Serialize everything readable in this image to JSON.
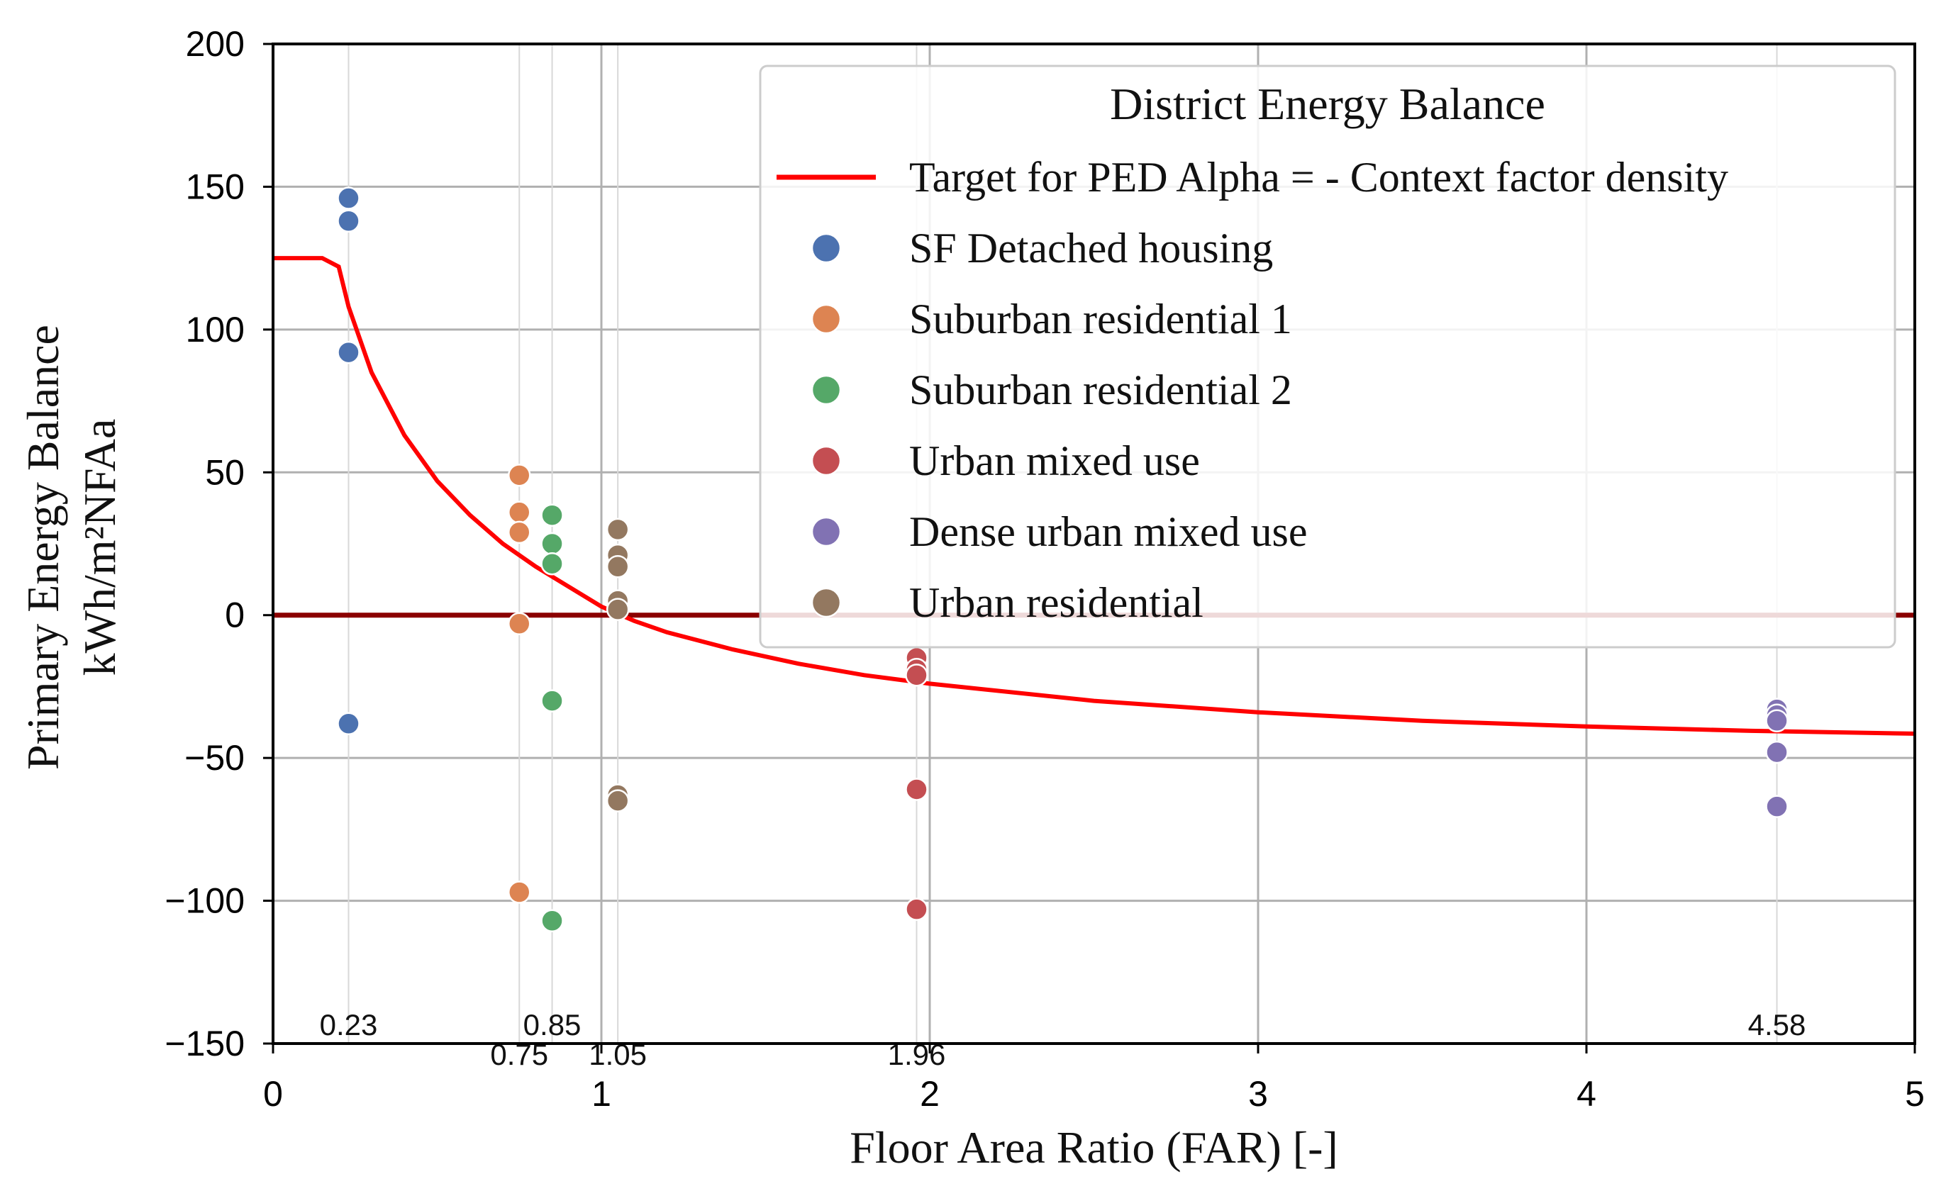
{
  "chart_data": {
    "type": "scatter",
    "xlabel": "Floor Area Ratio (FAR) [-]",
    "ylabel_line1": "Primary Energy Balance",
    "ylabel_line2": "kWh/m²NFAa",
    "xlim": [
      0,
      5
    ],
    "ylim": [
      -150,
      200
    ],
    "x_ticks": [
      0,
      1,
      2,
      3,
      4,
      5
    ],
    "x_tick_labels": [
      "0",
      "1",
      "2",
      "3",
      "4",
      "5"
    ],
    "y_ticks": [
      -150,
      -100,
      -50,
      0,
      50,
      100,
      150,
      200
    ],
    "y_tick_labels": [
      "−150",
      "−100",
      "−50",
      "0",
      "50",
      "100",
      "150",
      "200"
    ],
    "grid": true,
    "zero_line_color": "#8b0000",
    "far_markers": [
      {
        "x": 0.23,
        "label": "0.23",
        "row": "upper"
      },
      {
        "x": 0.75,
        "label": "0.75",
        "row": "lower"
      },
      {
        "x": 0.85,
        "label": "0.85",
        "row": "upper"
      },
      {
        "x": 1.05,
        "label": "1.05",
        "row": "lower"
      },
      {
        "x": 1.96,
        "label": "1.96",
        "row": "lower"
      },
      {
        "x": 4.58,
        "label": "4.58",
        "row": "upper"
      }
    ],
    "legend": {
      "title": "District Energy Balance",
      "position": "upper-right"
    },
    "target_curve": {
      "name": "Target for PED Alpha = - Context factor density",
      "color": "#ff0000",
      "points": [
        [
          0,
          125
        ],
        [
          0.15,
          125
        ],
        [
          0.2,
          122
        ],
        [
          0.23,
          108
        ],
        [
          0.3,
          85
        ],
        [
          0.4,
          63
        ],
        [
          0.5,
          47
        ],
        [
          0.6,
          35
        ],
        [
          0.7,
          25
        ],
        [
          0.8,
          17
        ],
        [
          0.9,
          10
        ],
        [
          1.0,
          3
        ],
        [
          1.1,
          -2
        ],
        [
          1.2,
          -6
        ],
        [
          1.4,
          -12
        ],
        [
          1.6,
          -17
        ],
        [
          1.8,
          -21
        ],
        [
          2.0,
          -24
        ],
        [
          2.5,
          -30
        ],
        [
          3.0,
          -34
        ],
        [
          3.5,
          -37
        ],
        [
          4.0,
          -39
        ],
        [
          4.5,
          -40.5
        ],
        [
          5.0,
          -41.5
        ]
      ]
    },
    "series": [
      {
        "name": "SF Detached housing",
        "color": "#4c72b0",
        "x": [
          0.23,
          0.23,
          0.23,
          0.23
        ],
        "y": [
          146,
          138,
          92,
          -38
        ]
      },
      {
        "name": "Suburban residential 1",
        "color": "#dd8452",
        "x": [
          0.75,
          0.75,
          0.75,
          0.75,
          0.75
        ],
        "y": [
          49,
          36,
          29,
          -3,
          -97
        ]
      },
      {
        "name": "Suburban residential 2",
        "color": "#55a868",
        "x": [
          0.85,
          0.85,
          0.85,
          0.85,
          0.85
        ],
        "y": [
          35,
          25,
          18,
          -30,
          -107
        ]
      },
      {
        "name": "Urban mixed use",
        "color": "#c44e52",
        "x": [
          1.96,
          1.96,
          1.96,
          1.96,
          1.96
        ],
        "y": [
          -15,
          -19,
          -21,
          -61,
          -103
        ]
      },
      {
        "name": "Dense urban mixed use",
        "color": "#8172b3",
        "x": [
          4.58,
          4.58,
          4.58,
          4.58,
          4.58
        ],
        "y": [
          -33,
          -35,
          -37,
          -48,
          -67
        ]
      },
      {
        "name": "Urban residential",
        "color": "#937860",
        "x": [
          1.05,
          1.05,
          1.05,
          1.05,
          1.05,
          1.05,
          1.05
        ],
        "y": [
          30,
          21,
          17,
          5,
          2,
          -63,
          -65
        ]
      }
    ]
  }
}
